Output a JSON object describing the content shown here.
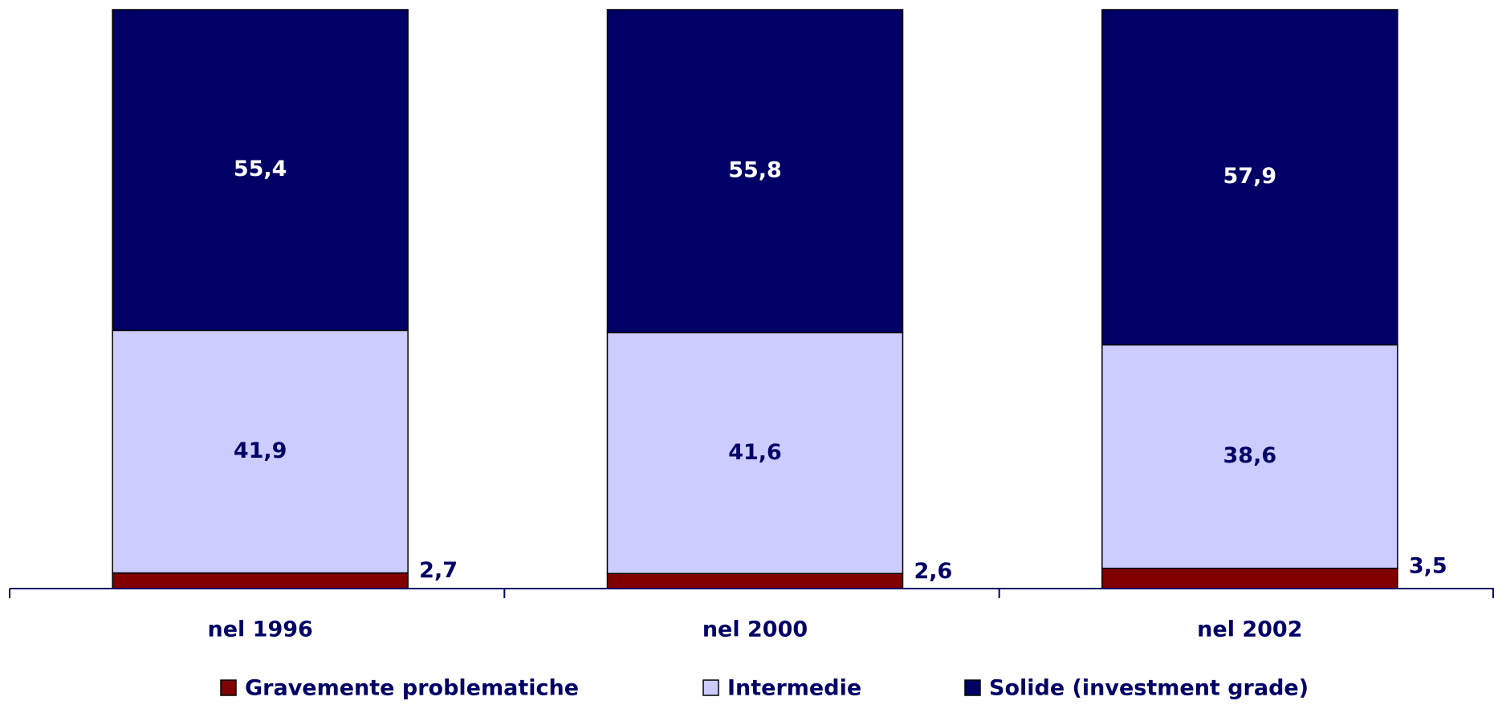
{
  "chart_data": {
    "type": "stacked_bar",
    "categories": [
      "nel 1996",
      "nel 2000",
      "nel 2002"
    ],
    "series": [
      {
        "name": "Gravemente problematiche",
        "color": "#800000",
        "values": [
          2.7,
          2.6,
          3.5
        ],
        "value_labels": [
          "2,7",
          "2,6",
          "3,5"
        ]
      },
      {
        "name": "Intermedie",
        "color": "#ccccff",
        "values": [
          41.9,
          41.6,
          38.6
        ],
        "value_labels": [
          "41,9",
          "41,6",
          "38,6"
        ]
      },
      {
        "name": "Solide (investment grade)",
        "color": "#000066",
        "values": [
          55.4,
          55.8,
          57.9
        ],
        "value_labels": [
          "55,4",
          "55,8",
          "57,9"
        ]
      }
    ],
    "ylim": [
      0,
      100
    ]
  }
}
